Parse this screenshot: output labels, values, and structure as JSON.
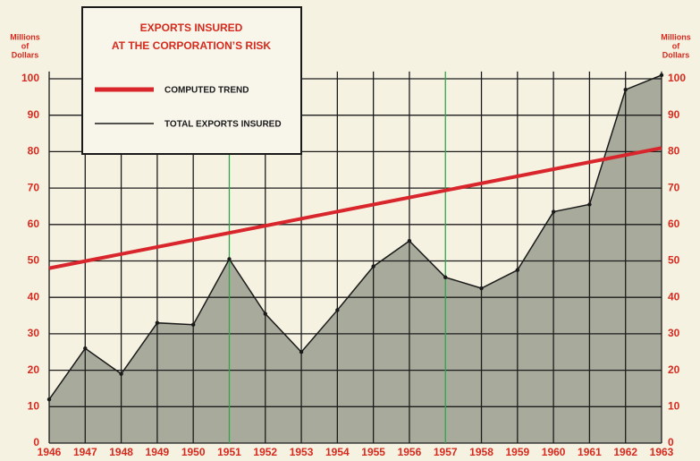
{
  "chart_data": {
    "type": "area",
    "title": [
      "EXPORTS INSURED",
      "AT THE CORPORATION’S RISK"
    ],
    "ylabel": [
      "Millions",
      "of",
      "Dollars"
    ],
    "y2label": [
      "Millions",
      "of",
      "Dollars"
    ],
    "x": [
      1946,
      1947,
      1948,
      1949,
      1950,
      1951,
      1952,
      1953,
      1954,
      1955,
      1956,
      1957,
      1958,
      1959,
      1960,
      1961,
      1962,
      1963
    ],
    "xlim": [
      1946,
      1963
    ],
    "xticks": [
      1946,
      1947,
      1948,
      1949,
      1950,
      1951,
      1952,
      1953,
      1954,
      1955,
      1956,
      1957,
      1958,
      1959,
      1960,
      1961,
      1962,
      1963
    ],
    "ylim": [
      0,
      102
    ],
    "yticks": [
      0,
      10,
      20,
      30,
      40,
      50,
      60,
      70,
      80,
      90,
      100
    ],
    "y2lim": [
      0,
      102
    ],
    "y2ticks": [
      0,
      10,
      20,
      30,
      40,
      50,
      60,
      70,
      80,
      90,
      100
    ],
    "grid": true,
    "grid_color": "#1c1c1c",
    "highlight_x": [
      1951,
      1957
    ],
    "highlight_color": "#2fa64a",
    "legend": "upper left",
    "series": [
      {
        "name": "COMPUTED TREND",
        "color": "#d8262c",
        "x": [
          1946,
          1963
        ],
        "values": [
          48,
          81
        ]
      },
      {
        "name": "TOTAL EXPORTS INSURED",
        "color": "#1a1a1a",
        "fill": "#a8aa9b",
        "values": [
          12,
          26,
          19,
          33,
          32.5,
          50.5,
          35.5,
          25,
          36.5,
          48.5,
          55.5,
          45.5,
          42.5,
          47.5,
          63.5,
          65.5,
          97,
          101
        ]
      }
    ]
  }
}
